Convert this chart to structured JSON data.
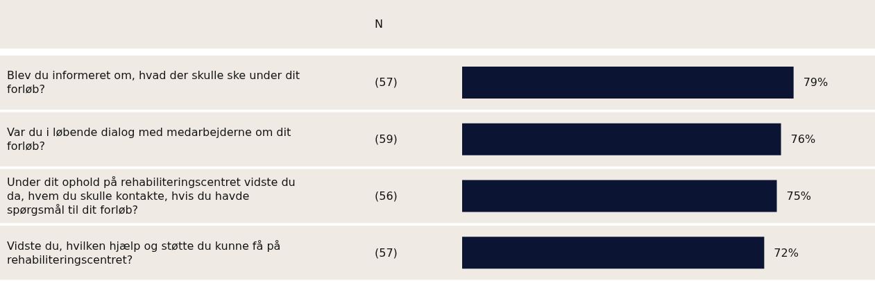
{
  "chart_data": {
    "type": "bar",
    "orientation": "horizontal",
    "categories": [
      "Blev du informeret om, hvad der skulle ske under dit forløb?",
      "Var du i løbende dialog med medarbejderne om dit forløb?",
      "Under dit ophold på rehabiliteringscentret vidste du da, hvem du skulle kontakte, hvis du havde spørgsmål til dit forløb?",
      "Vidste du, hvilken hjælp og støtte du kunne få på rehabiliteringscentret?"
    ],
    "values": [
      79,
      76,
      75,
      72
    ],
    "value_labels": [
      "79%",
      "76%",
      "75%",
      "72%"
    ],
    "color": "#0b1533",
    "annotations": [
      "N",
      "(57)",
      "(59)",
      "(56)",
      "(57)"
    ]
  }
}
